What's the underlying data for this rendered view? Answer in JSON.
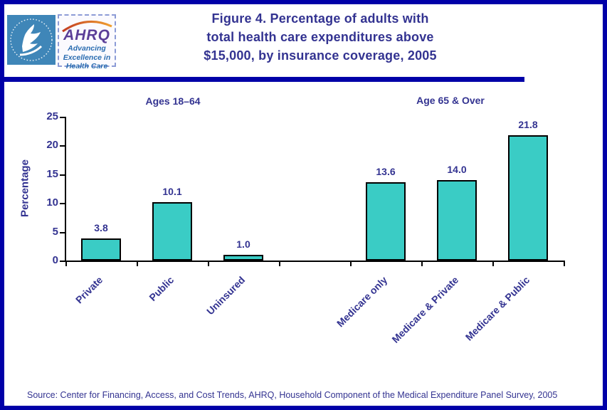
{
  "header": {
    "title_lines": [
      "Figure 4. Percentage of adults with",
      "total health care expenditures above",
      "$15,000, by insurance coverage, 2005"
    ]
  },
  "logos": {
    "hhs": {
      "name": "hhs-department-seal"
    },
    "ahrq": {
      "acronym": "AHRQ",
      "tagline_lines": [
        "Advancing",
        "Excellence in",
        "Health Care"
      ]
    }
  },
  "chart_data": {
    "type": "bar",
    "title": "",
    "xlabel": "",
    "ylabel": "Percentage",
    "ylim": [
      0,
      25
    ],
    "yticks": [
      0,
      5,
      10,
      15,
      20,
      25
    ],
    "grid": false,
    "legend": false,
    "bar_color": "#3ACCC5",
    "bar_border_color": "#000000",
    "groups": [
      {
        "label": "Ages 18–64",
        "categories": [
          "Private",
          "Public",
          "Uninsured"
        ],
        "values": [
          3.8,
          10.1,
          1.0
        ]
      },
      {
        "label": "Age 65 & Over",
        "categories": [
          "Medicare only",
          "Medicare & Private",
          "Medicare & Public"
        ],
        "values": [
          13.6,
          14.0,
          21.8
        ]
      }
    ]
  },
  "footer": {
    "source": "Source: Center for Financing, Access, and Cost Trends, AHRQ, Household Component of the Medical Expenditure Panel Survey, 2005"
  },
  "colors": {
    "frame_blue": "#0000A8",
    "text_navy": "#333391",
    "bar_teal": "#3ACCC5",
    "hhs_logo_blue": "#3F86B8",
    "ahrq_purple": "#5B3E98",
    "ahrq_tagline_blue": "#2A6CB0",
    "swoosh_orange": "#E08A2E"
  }
}
